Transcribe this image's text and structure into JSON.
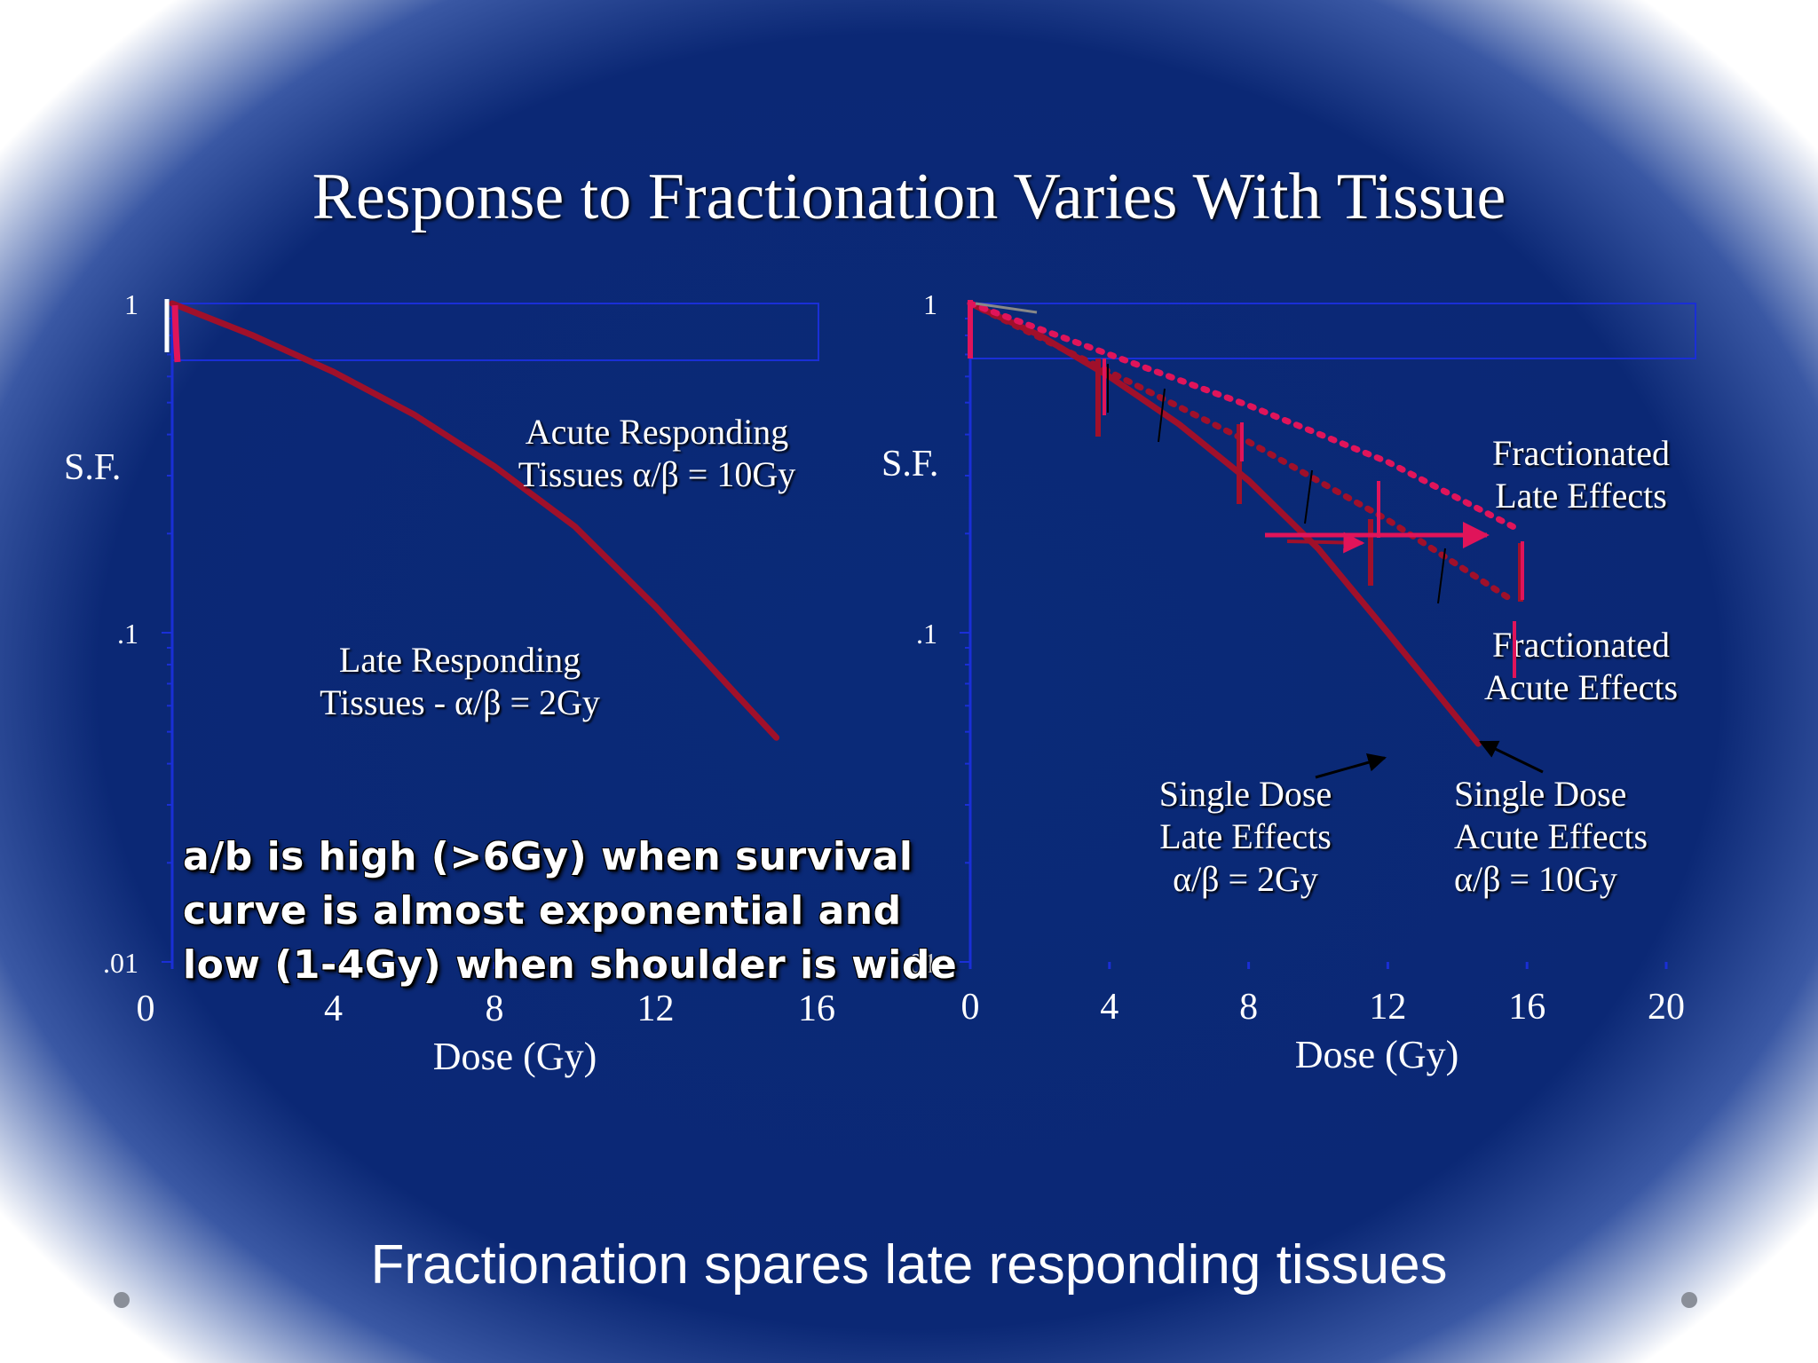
{
  "slide": {
    "title": "Response to Fractionation Varies With Tissue",
    "caption": "Fractionation spares late responding tissues",
    "note_lines": [
      "a/b is high (>6Gy) when survival",
      "curve is almost exponential and",
      "low (1-4Gy) when shoulder is wide"
    ]
  },
  "colors": {
    "background": "#0b2875",
    "axis": "#1a2fd6",
    "single_dose_curve": "#a0102a",
    "fractionated_marks": "#e0145a",
    "text": "#ffffff"
  },
  "chart_data": [
    {
      "type": "line",
      "panel": "left",
      "title": "",
      "xlabel": "Dose (Gy)",
      "ylabel": "S.F.",
      "xlim": [
        0,
        16
      ],
      "x_ticks": [
        0,
        4,
        8,
        12,
        16
      ],
      "x_tick_labels": [
        "0",
        "4",
        "8",
        "12",
        "16"
      ],
      "ylim": [
        0.01,
        1
      ],
      "y_scale": "log",
      "y_tick_labels": [
        "1",
        ".1",
        ".01"
      ],
      "y_ticks": [
        1,
        0.1,
        0.01
      ],
      "series": [
        {
          "name": "",
          "x": [
            0,
            2,
            4,
            6,
            8,
            10,
            12,
            14,
            15
          ],
          "y": [
            1.0,
            0.8,
            0.62,
            0.46,
            0.32,
            0.21,
            0.12,
            0.065,
            0.048
          ]
        }
      ],
      "annotations": [
        {
          "lines": [
            "Acute Responding",
            "Tissues α/β = 10Gy"
          ]
        },
        {
          "lines": [
            "Late Responding",
            "Tissues - α/β = 2Gy"
          ]
        }
      ]
    },
    {
      "type": "line",
      "panel": "right",
      "title": "",
      "xlabel": "Dose (Gy)",
      "ylabel": "S.F.",
      "xlim": [
        0,
        20
      ],
      "x_ticks": [
        0,
        4,
        8,
        12,
        16,
        20
      ],
      "x_tick_labels": [
        "0",
        "4",
        "8",
        "12",
        "16",
        "20"
      ],
      "ylim": [
        0.01,
        1
      ],
      "y_scale": "log",
      "y_tick_labels": [
        "1",
        ".1",
        ".01"
      ],
      "y_ticks": [
        1,
        0.1,
        0.01
      ],
      "series": [
        {
          "name": "",
          "style": "solid",
          "x": [
            0,
            2,
            4,
            6,
            8,
            10,
            12,
            14,
            14.6
          ],
          "y": [
            1.0,
            0.8,
            0.6,
            0.43,
            0.29,
            0.18,
            0.1,
            0.055,
            0.046
          ]
        },
        {
          "name": "",
          "style": "dotted",
          "x": [
            0,
            4,
            8,
            12,
            15.6
          ],
          "y": [
            1.0,
            0.62,
            0.38,
            0.22,
            0.125
          ]
        },
        {
          "name": "",
          "style": "dotted",
          "x": [
            0,
            4,
            8,
            12,
            15.6
          ],
          "y": [
            1.0,
            0.7,
            0.49,
            0.33,
            0.21
          ]
        }
      ],
      "annotations": [
        {
          "lines": [
            "Fractionated",
            "Late Effects"
          ]
        },
        {
          "lines": [
            "Fractionated",
            "Acute Effects"
          ]
        },
        {
          "lines": [
            "Single Dose",
            "Late Effects",
            "α/β = 2Gy"
          ]
        },
        {
          "lines": [
            "Single Dose",
            "Acute Effects",
            "α/β = 10Gy"
          ]
        }
      ]
    }
  ]
}
